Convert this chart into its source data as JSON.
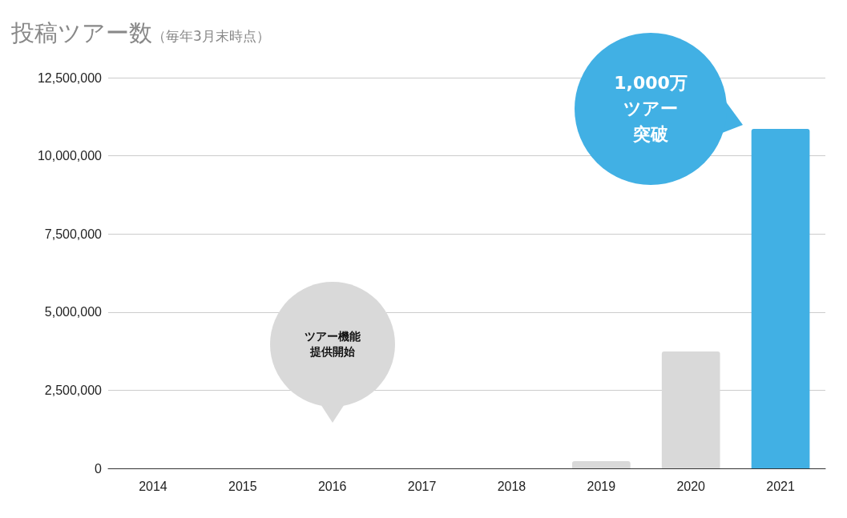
{
  "chart_data": {
    "type": "bar",
    "title": "投稿ツアー数",
    "subtitle": "（毎年3月末時点）",
    "categories": [
      "2014",
      "2015",
      "2016",
      "2017",
      "2018",
      "2019",
      "2020",
      "2021"
    ],
    "values": [
      0,
      0,
      0,
      0,
      0,
      230000,
      3740000,
      10860000
    ],
    "colors": [
      "#d9d9d9",
      "#d9d9d9",
      "#d9d9d9",
      "#d9d9d9",
      "#d9d9d9",
      "#d9d9d9",
      "#d9d9d9",
      "#41b0e4"
    ],
    "ylim": [
      0,
      12500000
    ],
    "yticks": [
      0,
      {
        "value": 2500000,
        "label": "2,500,000"
      },
      {
        "value": 5000000,
        "label": "5,000,000"
      },
      {
        "value": 7500000,
        "label": "7,500,000"
      },
      {
        "value": 10000000,
        "label": "10,000,000"
      },
      {
        "value": 12500000,
        "label": "12,500,000"
      }
    ],
    "grid": "y",
    "annotations": [
      "ツアー機能提供開始",
      "1,000万ツアー突破"
    ]
  }
}
